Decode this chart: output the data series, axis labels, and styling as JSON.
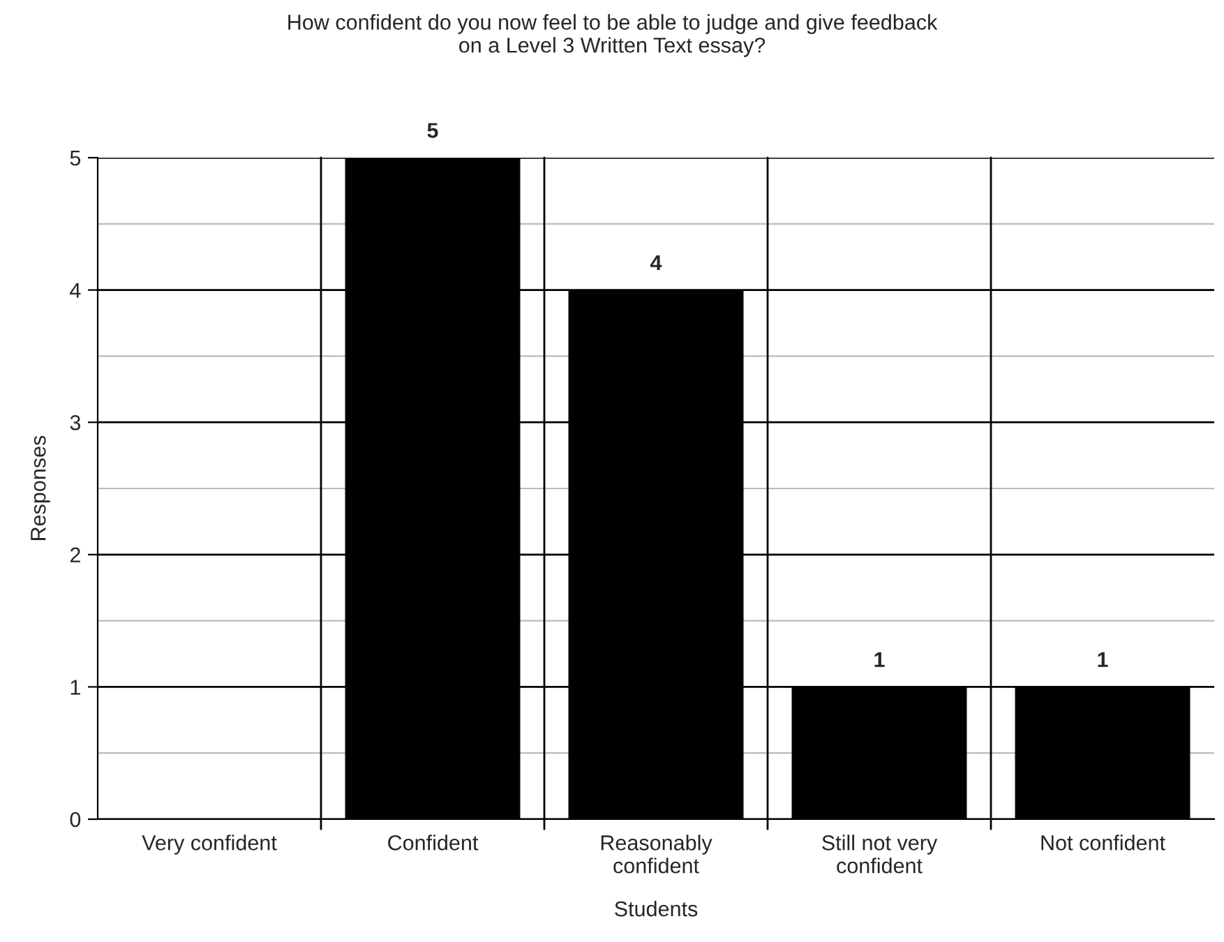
{
  "chart_data": {
    "type": "bar",
    "title": "How confident do you now feel to be able to judge and give feedback\non a Level 3 Written Text essay?",
    "xlabel": "Students",
    "ylabel": "Responses",
    "categories": [
      "Very confident",
      "Confident",
      "Reasonably\nconfident",
      "Still not very\nconfident",
      "Not confident"
    ],
    "values": [
      0,
      5,
      4,
      1,
      1
    ],
    "value_labels": [
      null,
      "5",
      "4",
      "1",
      "1"
    ],
    "color": "#000000",
    "ylim": [
      0,
      5
    ],
    "yticks": [
      0,
      1,
      2,
      3,
      4,
      5
    ],
    "grid": true
  }
}
